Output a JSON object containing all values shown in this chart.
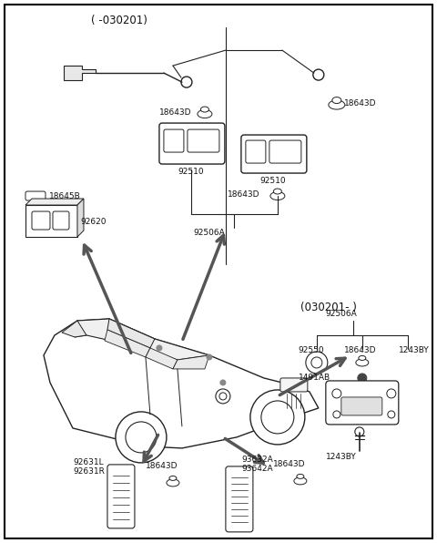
{
  "background_color": "#ffffff",
  "fig_width": 4.8,
  "fig_height": 5.96,
  "dpi": 100,
  "line_color": "#222222",
  "arrow_color": "#555555",
  "label_color": "#111111",
  "labels": {
    "top_note": "( -030201)",
    "bottom_note": "(030201- )",
    "92510_left": "92510",
    "92510_right": "92510",
    "92506A_top": "92506A",
    "18643D_left": "18643D",
    "18643D_right": "18643D",
    "18643D_below": "18643D",
    "18645B": "18645B",
    "92620": "92620",
    "92506A_br": "92506A",
    "92550": "92550",
    "18643D_br": "18643D",
    "1243BY_top": "1243BY",
    "1491AB": "1491AB",
    "1243BY_bot": "1243BY",
    "92631L": "92631L",
    "92631R": "92631R",
    "18643D_bl": "18643D",
    "93632A": "93632A",
    "93642A": "93642A",
    "18643D_bc": "18643D"
  }
}
